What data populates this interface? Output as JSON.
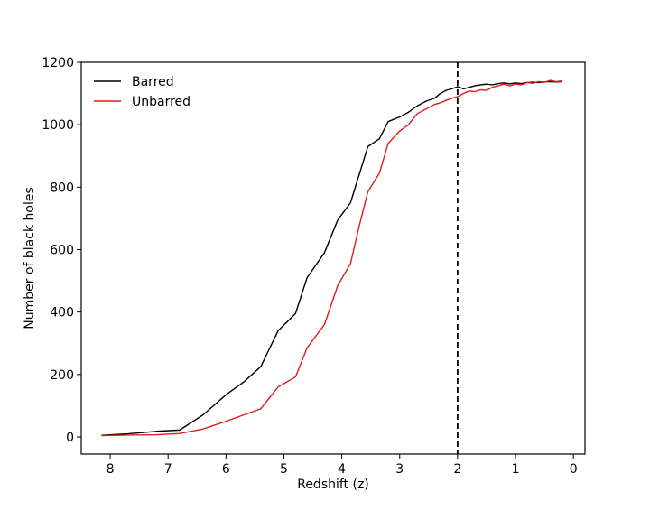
{
  "chart_data": {
    "type": "line",
    "title": "",
    "xlabel": "Redshift (z)",
    "ylabel": "Number of black holes",
    "xlim": [
      8.5,
      -0.2
    ],
    "ylim": [
      -55,
      1200
    ],
    "x_axis_reversed": true,
    "xticks": [
      8,
      7,
      6,
      5,
      4,
      3,
      2,
      1,
      0
    ],
    "yticks": [
      0,
      200,
      400,
      600,
      800,
      1000,
      1200
    ],
    "legend_position": "top-left",
    "grid": false,
    "reference_line": {
      "x": 2,
      "style": "dashed",
      "color": "#000000"
    },
    "series": [
      {
        "name": "Barred",
        "color": "#000000",
        "x": [
          8.15,
          7.7,
          7.2,
          6.8,
          6.4,
          6.0,
          5.7,
          5.4,
          5.1,
          4.8,
          4.6,
          4.3,
          4.07,
          3.85,
          3.7,
          3.55,
          3.35,
          3.2,
          3.0,
          2.85,
          2.7,
          2.55,
          2.4,
          2.3,
          2.2,
          2.1,
          2.0,
          1.9,
          1.8,
          1.7,
          1.6,
          1.5,
          1.4,
          1.3,
          1.2,
          1.1,
          1.0,
          0.9,
          0.8,
          0.7,
          0.6,
          0.5,
          0.4,
          0.3,
          0.2
        ],
        "y": [
          5,
          10,
          18,
          22,
          70,
          135,
          175,
          225,
          340,
          395,
          510,
          590,
          695,
          750,
          840,
          930,
          955,
          1010,
          1025,
          1040,
          1060,
          1075,
          1085,
          1100,
          1110,
          1115,
          1122,
          1115,
          1120,
          1125,
          1128,
          1130,
          1128,
          1132,
          1134,
          1131,
          1134,
          1132,
          1135,
          1136,
          1135,
          1137,
          1138,
          1137,
          1138
        ]
      },
      {
        "name": "Unbarred",
        "color": "#e31a1c",
        "x": [
          8.15,
          7.7,
          7.2,
          6.8,
          6.4,
          6.0,
          5.7,
          5.4,
          5.1,
          4.8,
          4.6,
          4.3,
          4.07,
          3.85,
          3.7,
          3.55,
          3.35,
          3.2,
          3.0,
          2.85,
          2.7,
          2.55,
          2.4,
          2.3,
          2.2,
          2.1,
          2.0,
          1.9,
          1.8,
          1.7,
          1.6,
          1.5,
          1.4,
          1.3,
          1.2,
          1.1,
          1.0,
          0.9,
          0.8,
          0.7,
          0.6,
          0.5,
          0.4,
          0.3,
          0.2
        ],
        "y": [
          4,
          6,
          7,
          11,
          25,
          50,
          70,
          90,
          160,
          192,
          285,
          360,
          485,
          555,
          675,
          785,
          845,
          940,
          980,
          1000,
          1035,
          1050,
          1065,
          1070,
          1078,
          1085,
          1090,
          1100,
          1108,
          1106,
          1112,
          1110,
          1120,
          1125,
          1130,
          1125,
          1130,
          1128,
          1135,
          1133,
          1138,
          1136,
          1142,
          1138,
          1140
        ]
      }
    ]
  }
}
